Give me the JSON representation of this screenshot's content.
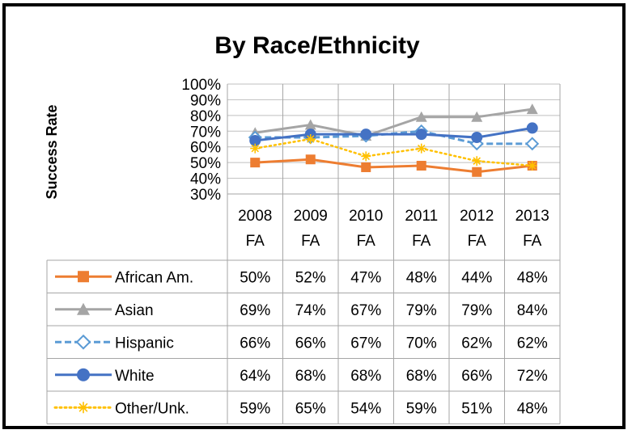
{
  "chart_data": {
    "type": "line",
    "title": "By Race/Ethnicity",
    "ylabel": "Success Rate",
    "ylim": [
      30,
      100
    ],
    "yticks": [
      "30%",
      "40%",
      "50%",
      "60%",
      "70%",
      "80%",
      "90%",
      "100%"
    ],
    "categories": [
      [
        "2008",
        "FA"
      ],
      [
        "2009",
        "FA"
      ],
      [
        "2010",
        "FA"
      ],
      [
        "2011",
        "FA"
      ],
      [
        "2012",
        "FA"
      ],
      [
        "2013",
        "FA"
      ]
    ],
    "grid": true,
    "legend": "data-table",
    "series": [
      {
        "name": "African Am.",
        "values": [
          50,
          52,
          47,
          48,
          44,
          48
        ],
        "labels": [
          "50%",
          "52%",
          "47%",
          "48%",
          "44%",
          "48%"
        ],
        "color": "#ED7D31",
        "marker": "square",
        "dash": "solid"
      },
      {
        "name": "Asian",
        "values": [
          69,
          74,
          67,
          79,
          79,
          84
        ],
        "labels": [
          "69%",
          "74%",
          "67%",
          "79%",
          "79%",
          "84%"
        ],
        "color": "#A5A5A5",
        "marker": "triangle",
        "dash": "solid"
      },
      {
        "name": "Hispanic",
        "values": [
          66,
          66,
          67,
          70,
          62,
          62
        ],
        "labels": [
          "66%",
          "66%",
          "67%",
          "70%",
          "62%",
          "62%"
        ],
        "color": "#5B9BD5",
        "marker": "diamond-open",
        "dash": "dashed"
      },
      {
        "name": "White",
        "values": [
          64,
          68,
          68,
          68,
          66,
          72
        ],
        "labels": [
          "64%",
          "68%",
          "68%",
          "68%",
          "66%",
          "72%"
        ],
        "color": "#4472C4",
        "marker": "circle",
        "dash": "solid"
      },
      {
        "name": "Other/Unk.",
        "values": [
          59,
          65,
          54,
          59,
          51,
          48
        ],
        "labels": [
          "59%",
          "65%",
          "54%",
          "59%",
          "51%",
          "48%"
        ],
        "color": "#FFC000",
        "marker": "asterisk",
        "dash": "dotted"
      }
    ]
  }
}
